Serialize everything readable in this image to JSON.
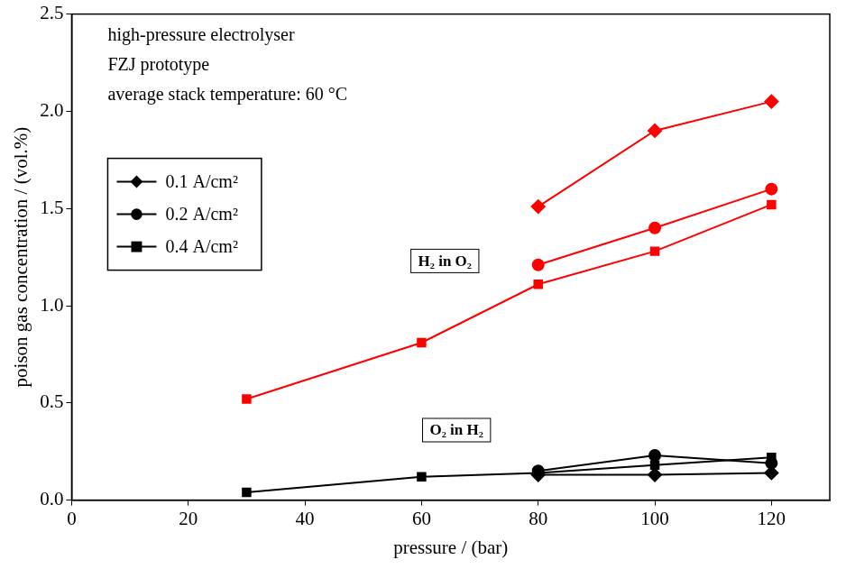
{
  "chart_data": {
    "type": "line",
    "notes": [
      "high-pressure electrolyser",
      "FZJ prototype",
      "average stack temperature: 60 °C"
    ],
    "x_label": "pressure / (bar)",
    "y_label": "poison gas concentration / (vol.%)",
    "x": [
      30,
      60,
      80,
      100,
      120
    ],
    "series": [
      {
        "name": "0.1 A/cm²",
        "color": "#000000",
        "marker": "diamond",
        "values": [
          null,
          null,
          0.13,
          0.13,
          0.14
        ]
      },
      {
        "name": "0.2 A/cm²",
        "color": "#000000",
        "marker": "circle",
        "values": [
          null,
          null,
          0.15,
          0.23,
          0.19
        ]
      },
      {
        "name": "0.4 A/cm²",
        "color": "#000000",
        "marker": "square",
        "values": [
          0.04,
          0.12,
          0.14,
          0.18,
          0.22
        ]
      },
      {
        "name": "0.1 A/cm²",
        "color": "#ff0000",
        "marker": "diamond",
        "values": [
          null,
          null,
          1.51,
          1.9,
          2.05
        ]
      },
      {
        "name": "0.2 A/cm²",
        "color": "#ff0000",
        "marker": "circle",
        "values": [
          null,
          null,
          1.21,
          1.4,
          1.6
        ]
      },
      {
        "name": "0.4 A/cm²",
        "color": "#ff0000",
        "marker": "square",
        "values": [
          0.52,
          0.81,
          1.11,
          1.28,
          1.52
        ]
      }
    ],
    "annotations": [
      {
        "text": "H₂ in O₂",
        "x": 64,
        "y": 1.23
      },
      {
        "text": "O₂ in H₂",
        "x": 66,
        "y": 0.36
      }
    ],
    "xlim": [
      0,
      130
    ],
    "xticks": [
      0,
      20,
      40,
      60,
      80,
      100,
      120
    ],
    "ylim": [
      0,
      2.5
    ],
    "yticks": [
      {
        "value": 0,
        "label": "0.0"
      },
      0.5,
      {
        "value": 1,
        "label": "1.0"
      },
      1.5,
      {
        "value": 2,
        "label": "2.0"
      },
      2.5
    ],
    "grid": false,
    "legend": "upper left"
  }
}
